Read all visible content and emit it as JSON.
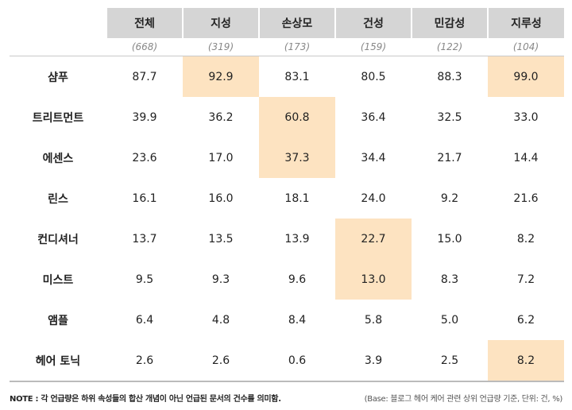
{
  "columns": [
    "전체",
    "지성",
    "손상모",
    "건성",
    "민감성",
    "지루성"
  ],
  "counts": [
    "(668)",
    "(319)",
    "(173)",
    "(159)",
    "(122)",
    "(104)"
  ],
  "highlight_color": "#fde3c1",
  "rows": [
    {
      "label": "샴푸",
      "values": [
        "87.7",
        "92.9",
        "83.1",
        "80.5",
        "88.3",
        "99.0"
      ],
      "highlight": [
        false,
        true,
        false,
        false,
        false,
        true
      ]
    },
    {
      "label": "트리트먼트",
      "values": [
        "39.9",
        "36.2",
        "60.8",
        "36.4",
        "32.5",
        "33.0"
      ],
      "highlight": [
        false,
        false,
        true,
        false,
        false,
        false
      ]
    },
    {
      "label": "에센스",
      "values": [
        "23.6",
        "17.0",
        "37.3",
        "34.4",
        "21.7",
        "14.4"
      ],
      "highlight": [
        false,
        false,
        true,
        false,
        false,
        false
      ]
    },
    {
      "label": "린스",
      "values": [
        "16.1",
        "16.0",
        "18.1",
        "24.0",
        "9.2",
        "21.6"
      ],
      "highlight": [
        false,
        false,
        false,
        false,
        false,
        false
      ]
    },
    {
      "label": "컨디셔너",
      "values": [
        "13.7",
        "13.5",
        "13.9",
        "22.7",
        "15.0",
        "8.2"
      ],
      "highlight": [
        false,
        false,
        false,
        true,
        false,
        false
      ]
    },
    {
      "label": "미스트",
      "values": [
        "9.5",
        "9.3",
        "9.6",
        "13.0",
        "8.3",
        "7.2"
      ],
      "highlight": [
        false,
        false,
        false,
        true,
        false,
        false
      ]
    },
    {
      "label": "앰플",
      "values": [
        "6.4",
        "4.8",
        "8.4",
        "5.8",
        "5.0",
        "6.2"
      ],
      "highlight": [
        false,
        false,
        false,
        false,
        false,
        false
      ]
    },
    {
      "label": "헤어 토닉",
      "values": [
        "2.6",
        "2.6",
        "0.6",
        "3.9",
        "2.5",
        "8.2"
      ],
      "highlight": [
        false,
        false,
        false,
        false,
        false,
        true
      ]
    }
  ],
  "note": "NOTE : 각 언급량은 하위 속성들의 합산 개념이 아닌 언급된 문서의 건수를 의미함.",
  "base": "(Base: 블로그 헤어 케어 관련 상위 언급량 기준, 단위: 건, %)"
}
